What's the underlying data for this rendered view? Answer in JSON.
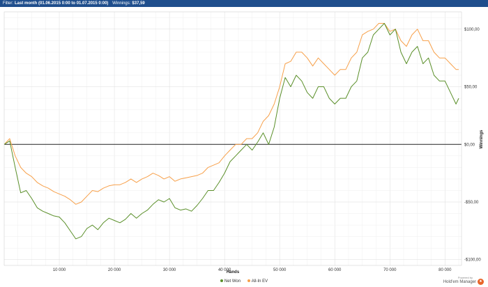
{
  "filter": {
    "prefix": "Filter:",
    "value": "Last month (01.06.2015 0:00 to 01.07.2015 0:00)",
    "winnings_label": "Winnings:",
    "winnings_value": "$37,59"
  },
  "legend": [
    {
      "name": "Net Won",
      "color": "#5a8f29"
    },
    {
      "name": "All-In EV",
      "color": "#f7a04a"
    }
  ],
  "brand": {
    "sub": "Powered by",
    "name": "Hold'em Manager",
    "icon": "hm-logo-icon"
  },
  "chart_data": {
    "type": "line",
    "xlabel": "Hands",
    "ylabel": "Winnings",
    "xlim": [
      0,
      83000
    ],
    "ylim": [
      -105,
      115
    ],
    "x_ticks": [
      10000,
      20000,
      30000,
      40000,
      50000,
      60000,
      70000,
      80000
    ],
    "x_tick_labels": [
      "10 000",
      "20 000",
      "30 000",
      "40 000",
      "50 000",
      "60 000",
      "70 000",
      "80 000"
    ],
    "y_ticks": [
      -100,
      -50,
      0,
      50,
      100
    ],
    "y_tick_labels": [
      "-$100,00",
      "-$50,00",
      "$0,00",
      "$50,00",
      "$100,00"
    ],
    "grid": true,
    "zero_line": true,
    "legend_position": "bottom",
    "series": [
      {
        "name": "Net Won",
        "color": "#5a8f29",
        "x": [
          0,
          1000,
          2000,
          3000,
          4000,
          5000,
          6000,
          7000,
          8000,
          9000,
          10000,
          11000,
          12000,
          13000,
          14000,
          15000,
          16000,
          17000,
          18000,
          19000,
          20000,
          21000,
          22000,
          23000,
          24000,
          25000,
          26000,
          27000,
          28000,
          29000,
          30000,
          31000,
          32000,
          33000,
          34000,
          35000,
          36000,
          37000,
          38000,
          39000,
          40000,
          41000,
          42000,
          43000,
          44000,
          45000,
          46000,
          47000,
          48000,
          49000,
          50000,
          51000,
          52000,
          53000,
          54000,
          55000,
          56000,
          57000,
          58000,
          59000,
          60000,
          61000,
          62000,
          63000,
          64000,
          65000,
          66000,
          67000,
          68000,
          69000,
          70000,
          71000,
          72000,
          73000,
          74000,
          75000,
          76000,
          77000,
          78000,
          79000,
          80000,
          81000,
          82000,
          82500
        ],
        "y": [
          0,
          3,
          -20,
          -42,
          -40,
          -47,
          -55,
          -58,
          -60,
          -62,
          -63,
          -68,
          -75,
          -82,
          -80,
          -73,
          -70,
          -74,
          -68,
          -64,
          -66,
          -68,
          -65,
          -60,
          -64,
          -60,
          -57,
          -52,
          -48,
          -50,
          -47,
          -55,
          -57,
          -56,
          -58,
          -53,
          -47,
          -40,
          -40,
          -33,
          -25,
          -15,
          -10,
          -5,
          0,
          -5,
          2,
          10,
          0,
          15,
          40,
          58,
          50,
          60,
          55,
          45,
          40,
          50,
          50,
          40,
          35,
          40,
          40,
          50,
          55,
          75,
          80,
          95,
          100,
          105,
          95,
          100,
          80,
          70,
          80,
          85,
          70,
          75,
          60,
          55,
          55,
          45,
          35,
          40
        ]
      },
      {
        "name": "All-In EV",
        "color": "#f7a04a",
        "x": [
          0,
          1000,
          2000,
          3000,
          4000,
          5000,
          6000,
          7000,
          8000,
          9000,
          10000,
          11000,
          12000,
          13000,
          14000,
          15000,
          16000,
          17000,
          18000,
          19000,
          20000,
          21000,
          22000,
          23000,
          24000,
          25000,
          26000,
          27000,
          28000,
          29000,
          30000,
          31000,
          32000,
          33000,
          34000,
          35000,
          36000,
          37000,
          38000,
          39000,
          40000,
          41000,
          42000,
          43000,
          44000,
          45000,
          46000,
          47000,
          48000,
          49000,
          50000,
          51000,
          52000,
          53000,
          54000,
          55000,
          56000,
          57000,
          58000,
          59000,
          60000,
          61000,
          62000,
          63000,
          64000,
          65000,
          66000,
          67000,
          68000,
          69000,
          70000,
          71000,
          72000,
          73000,
          74000,
          75000,
          76000,
          77000,
          78000,
          79000,
          80000,
          81000,
          82000,
          82500
        ],
        "y": [
          0,
          5,
          -10,
          -20,
          -25,
          -28,
          -33,
          -36,
          -38,
          -41,
          -43,
          -45,
          -48,
          -52,
          -50,
          -45,
          -40,
          -41,
          -38,
          -36,
          -35,
          -35,
          -33,
          -30,
          -33,
          -30,
          -28,
          -25,
          -27,
          -30,
          -28,
          -32,
          -30,
          -29,
          -28,
          -27,
          -25,
          -20,
          -18,
          -16,
          -10,
          -5,
          0,
          0,
          5,
          5,
          10,
          20,
          25,
          35,
          50,
          70,
          72,
          80,
          80,
          75,
          68,
          75,
          70,
          65,
          60,
          65,
          65,
          75,
          80,
          95,
          98,
          100,
          105,
          105,
          98,
          100,
          90,
          85,
          95,
          100,
          90,
          90,
          80,
          75,
          75,
          70,
          65,
          65
        ]
      }
    ]
  }
}
